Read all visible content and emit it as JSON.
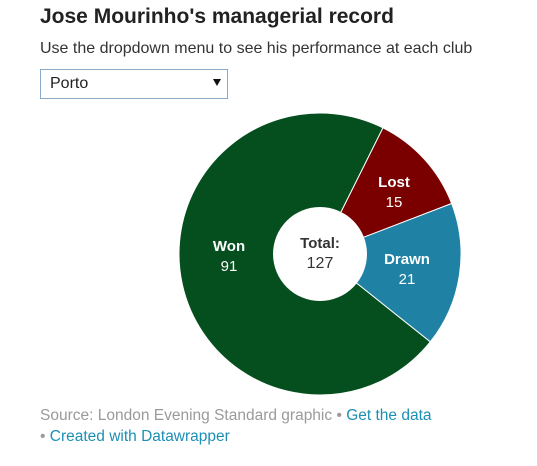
{
  "header": {
    "title": "Jose Mourinho's managerial record",
    "subtitle": "Use the dropdown menu to see his performance at each club"
  },
  "dropdown": {
    "selected": "Porto"
  },
  "chart_data": {
    "type": "pie",
    "variant": "donut",
    "center_label": "Total:",
    "total": 127,
    "categories": [
      "Won",
      "Drawn",
      "Lost"
    ],
    "values": [
      91,
      21,
      15
    ],
    "colors": {
      "Won": "#054f1f",
      "Drawn": "#1f82a4",
      "Lost": "#7a0000"
    }
  },
  "footer": {
    "source": "Source: London Evening Standard graphic",
    "separator": "•",
    "get_data_link": "Get the data",
    "created_link": "Created with Datawrapper"
  }
}
